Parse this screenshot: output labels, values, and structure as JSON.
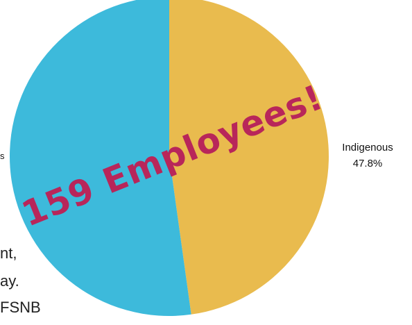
{
  "background_text": {
    "line1": "nt,",
    "line2": "ay.",
    "line3": "FSNB",
    "left_fragment": "s"
  },
  "overlay_text": "159 Employees!",
  "colors": {
    "indigenous": "#E9BB4E",
    "other": "#3DBADB",
    "overlay": "#B8265A"
  },
  "chart_data": {
    "type": "pie",
    "title": "",
    "slices": [
      {
        "label": "Indigenous",
        "pct_label": "47.8%",
        "value": 47.8,
        "color": "#E9BB4E"
      },
      {
        "label": "",
        "pct_label": "",
        "value": 52.2,
        "color": "#3DBADB"
      }
    ],
    "start_angle_deg": 0,
    "direction": "clockwise"
  }
}
